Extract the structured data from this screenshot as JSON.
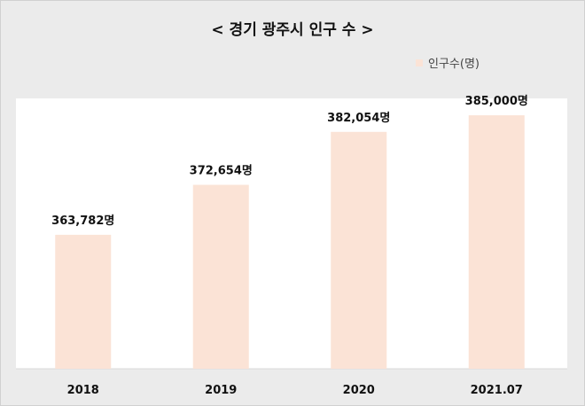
{
  "chart_data": {
    "type": "bar",
    "title": "< 경기 광주시 인구 수 >",
    "categories": [
      "2018",
      "2019",
      "2020",
      "2021.07"
    ],
    "series": [
      {
        "name": "인구수(명)",
        "values": [
          363782,
          372654,
          382054,
          385000
        ]
      }
    ],
    "data_labels": [
      "363,782명",
      "372,654명",
      "382,054명",
      "385,000명"
    ],
    "ylim": [
      340000,
      388000
    ],
    "grid": false,
    "legend_position": "top-right",
    "bar_color": "#fbe3d6",
    "plot_background": "#ffffff",
    "page_background": "#ebebeb"
  }
}
